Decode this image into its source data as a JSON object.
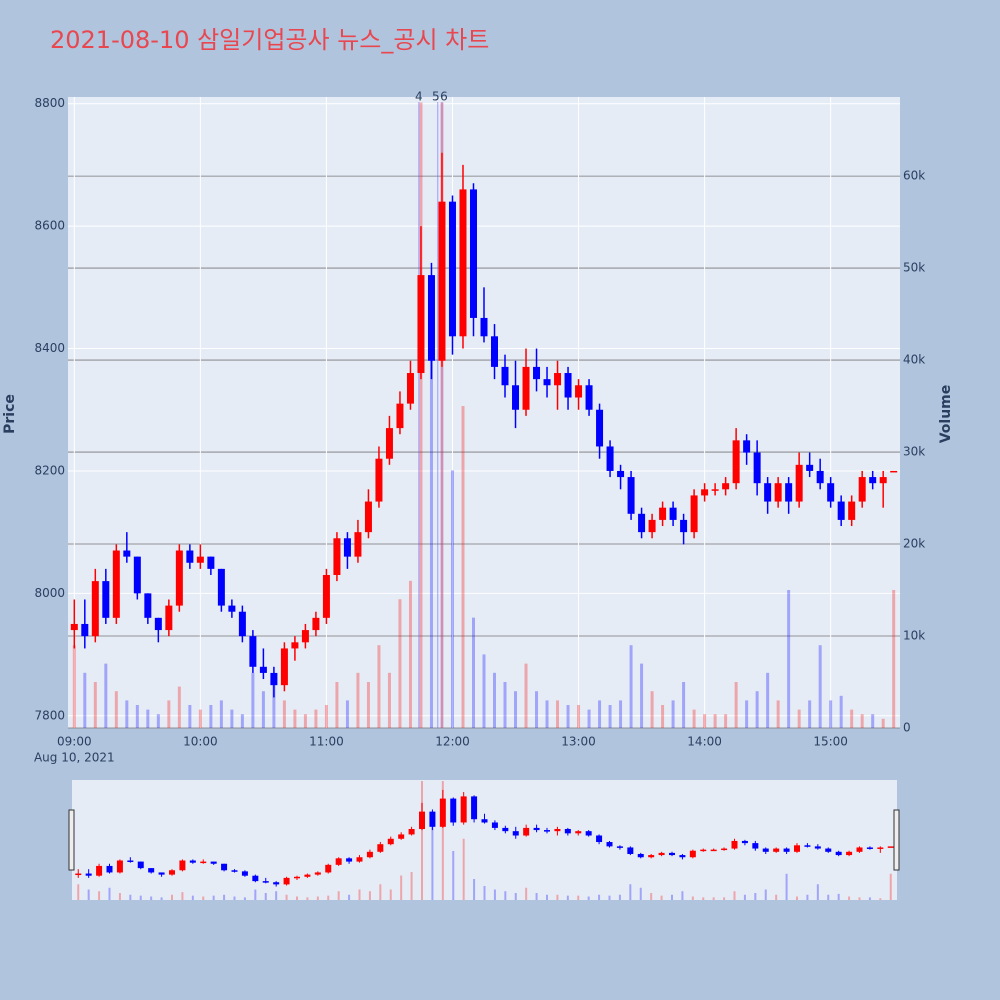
{
  "chart_data": {
    "type": "candlestick",
    "title": "2021-08-10 삼일기업공사 뉴스_공시 차트",
    "x_date_label": "Aug 10, 2021",
    "ylabel": "Price",
    "y2label": "Volume",
    "x": [
      "09:00",
      "09:05",
      "09:10",
      "09:15",
      "09:20",
      "09:25",
      "09:30",
      "09:35",
      "09:40",
      "09:45",
      "09:50",
      "09:55",
      "10:00",
      "10:05",
      "10:10",
      "10:15",
      "10:20",
      "10:25",
      "10:30",
      "10:35",
      "10:40",
      "10:45",
      "10:50",
      "10:55",
      "11:00",
      "11:05",
      "11:10",
      "11:15",
      "11:20",
      "11:25",
      "11:30",
      "11:35",
      "11:40",
      "11:45",
      "11:50",
      "11:55",
      "12:00",
      "12:05",
      "12:10",
      "12:15",
      "12:20",
      "12:25",
      "12:30",
      "12:35",
      "12:40",
      "12:45",
      "12:50",
      "12:55",
      "13:00",
      "13:05",
      "13:10",
      "13:15",
      "13:20",
      "13:25",
      "13:30",
      "13:35",
      "13:40",
      "13:45",
      "13:50",
      "13:55",
      "14:00",
      "14:05",
      "14:10",
      "14:15",
      "14:20",
      "14:25",
      "14:30",
      "14:35",
      "14:40",
      "14:45",
      "14:50",
      "14:55",
      "15:00",
      "15:05",
      "15:10",
      "15:15",
      "15:20",
      "15:25",
      "15:30"
    ],
    "open": [
      7940,
      7950,
      7930,
      8020,
      7960,
      8070,
      8060,
      8000,
      7960,
      7940,
      7980,
      8070,
      8050,
      8060,
      8040,
      7980,
      7970,
      7930,
      7880,
      7870,
      7850,
      7910,
      7920,
      7940,
      7960,
      8030,
      8090,
      8060,
      8100,
      8150,
      8220,
      8270,
      8310,
      8360,
      8520,
      8380,
      8640,
      8420,
      8660,
      8450,
      8420,
      8370,
      8340,
      8300,
      8370,
      8350,
      8340,
      8360,
      8320,
      8340,
      8300,
      8240,
      8200,
      8190,
      8130,
      8100,
      8120,
      8140,
      8120,
      8100,
      8160,
      8170,
      8170,
      8180,
      8250,
      8230,
      8180,
      8150,
      8180,
      8150,
      8210,
      8200,
      8180,
      8150,
      8120,
      8150,
      8190,
      8180,
      8200
    ],
    "high": [
      7990,
      7990,
      8040,
      8040,
      8080,
      8100,
      8060,
      8000,
      7960,
      7990,
      8080,
      8080,
      8080,
      8060,
      8040,
      7990,
      7980,
      7940,
      7910,
      7880,
      7920,
      7930,
      7950,
      7970,
      8040,
      8100,
      8100,
      8120,
      8170,
      8240,
      8290,
      8330,
      8380,
      8600,
      8540,
      8720,
      8650,
      8700,
      8670,
      8500,
      8440,
      8390,
      8380,
      8400,
      8400,
      8370,
      8380,
      8370,
      8350,
      8350,
      8310,
      8250,
      8210,
      8200,
      8140,
      8130,
      8150,
      8150,
      8130,
      8170,
      8180,
      8180,
      8190,
      8270,
      8260,
      8250,
      8190,
      8190,
      8190,
      8230,
      8230,
      8220,
      8190,
      8160,
      8160,
      8200,
      8200,
      8200,
      8200
    ],
    "low": [
      7910,
      7910,
      7920,
      7950,
      7950,
      8050,
      7990,
      7950,
      7920,
      7930,
      7970,
      8040,
      8040,
      8030,
      7970,
      7960,
      7920,
      7870,
      7860,
      7830,
      7840,
      7890,
      7910,
      7930,
      7950,
      8020,
      8040,
      8050,
      8090,
      8140,
      8210,
      8260,
      8300,
      8350,
      8350,
      8370,
      8390,
      8400,
      8420,
      8410,
      8350,
      8320,
      8270,
      8290,
      8330,
      8320,
      8300,
      8300,
      8300,
      8290,
      8220,
      8190,
      8170,
      8120,
      8090,
      8090,
      8110,
      8110,
      8080,
      8090,
      8150,
      8160,
      8160,
      8170,
      8210,
      8160,
      8130,
      8140,
      8130,
      8140,
      8190,
      8170,
      8140,
      8110,
      8110,
      8140,
      8170,
      8140,
      8200
    ],
    "close": [
      7950,
      7930,
      8020,
      7960,
      8070,
      8060,
      8000,
      7960,
      7940,
      7980,
      8070,
      8050,
      8060,
      8040,
      7980,
      7970,
      7930,
      7880,
      7870,
      7850,
      7910,
      7920,
      7940,
      7960,
      8030,
      8090,
      8060,
      8100,
      8150,
      8220,
      8270,
      8310,
      8360,
      8520,
      8380,
      8640,
      8420,
      8660,
      8450,
      8420,
      8370,
      8340,
      8300,
      8370,
      8350,
      8340,
      8360,
      8320,
      8340,
      8300,
      8240,
      8200,
      8190,
      8130,
      8100,
      8120,
      8140,
      8120,
      8100,
      8160,
      8170,
      8170,
      8180,
      8250,
      8230,
      8180,
      8150,
      8180,
      8150,
      8210,
      8200,
      8180,
      8150,
      8120,
      8150,
      8190,
      8180,
      8190,
      8200
    ],
    "volume": [
      9000,
      6000,
      5000,
      7000,
      4000,
      3000,
      2500,
      2000,
      1500,
      3000,
      4500,
      2500,
      2000,
      2500,
      3000,
      2000,
      1500,
      6000,
      4000,
      5000,
      3000,
      2000,
      1500,
      2000,
      2500,
      5000,
      3000,
      6000,
      5000,
      9000,
      6000,
      14000,
      16000,
      68000,
      42000,
      68000,
      28000,
      35000,
      12000,
      8000,
      6000,
      5000,
      4000,
      7000,
      4000,
      3000,
      3000,
      2500,
      2500,
      2000,
      3000,
      2500,
      3000,
      9000,
      7000,
      4000,
      2500,
      3000,
      5000,
      2000,
      1500,
      1500,
      1500,
      5000,
      3000,
      4000,
      6000,
      3000,
      15000,
      2000,
      3000,
      9000,
      3000,
      3500,
      2000,
      1500,
      1500,
      1000,
      15000
    ],
    "colors": {
      "increasing": "#ff0000",
      "decreasing": "#0000ff"
    },
    "xlim": [
      "08:57",
      "15:33"
    ],
    "xticks": [
      "09:00",
      "10:00",
      "11:00",
      "12:00",
      "13:00",
      "14:00",
      "15:00"
    ],
    "ylim": [
      7780,
      8811
    ],
    "yticks": [
      7800,
      8000,
      8200,
      8400,
      8600,
      8800
    ],
    "y2lim": [
      0,
      68600
    ],
    "y2ticks": [
      0,
      {
        "value": 10000,
        "label": "10k"
      },
      {
        "value": 20000,
        "label": "20k"
      },
      {
        "value": 30000,
        "label": "30k"
      },
      {
        "value": 40000,
        "label": "40k"
      },
      {
        "value": 50000,
        "label": "50k"
      },
      {
        "value": 60000,
        "label": "60k"
      }
    ],
    "annotations": [
      {
        "x": "11:44",
        "text": "4"
      },
      {
        "x": "11:53",
        "text": "5"
      },
      {
        "x": "11:55",
        "text": "6"
      }
    ],
    "grid": true,
    "rangeslider": true
  }
}
